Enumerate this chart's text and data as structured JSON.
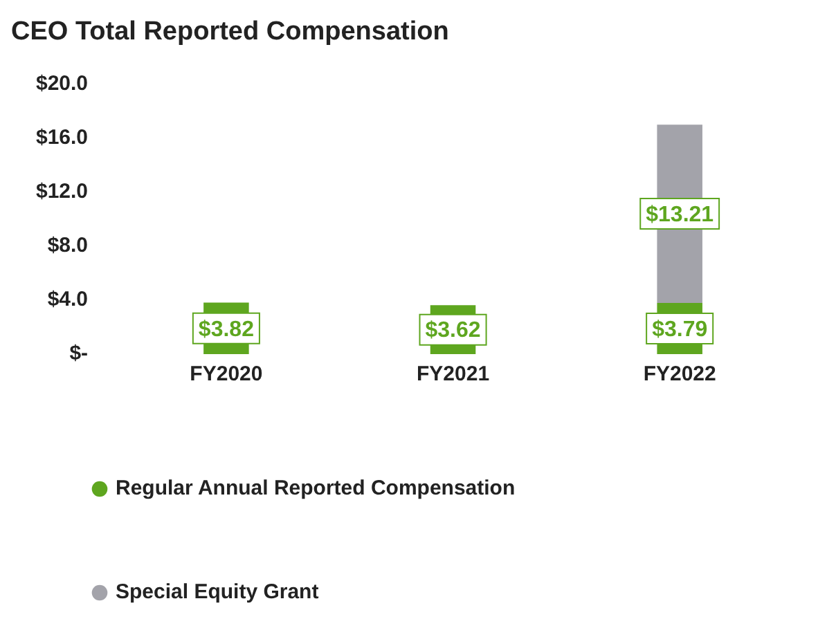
{
  "chart_data": {
    "type": "bar",
    "title": "CEO Total Reported Compensation",
    "categories": [
      "FY2020",
      "FY2021",
      "FY2022"
    ],
    "stacked": true,
    "series": [
      {
        "name": "Regular Annual Reported Compensation",
        "color": "#5ea61f",
        "values": [
          3.82,
          3.62,
          3.79
        ],
        "value_labels": [
          "$3.82",
          "$3.62",
          "$3.79"
        ]
      },
      {
        "name": "Special Equity Grant",
        "color": "#a3a3aa",
        "values": [
          null,
          null,
          13.21
        ],
        "value_labels": [
          null,
          null,
          "$13.21"
        ]
      }
    ],
    "ylim": [
      0,
      20
    ],
    "yticks": [
      {
        "value": 0,
        "label": "$-"
      },
      {
        "value": 4,
        "label": "$4.0"
      },
      {
        "value": 8,
        "label": "$8.0"
      },
      {
        "value": 12,
        "label": "$12.0"
      },
      {
        "value": 16,
        "label": "$16.0"
      },
      {
        "value": 20,
        "label": "$20.0"
      }
    ],
    "grid": false,
    "legend": "bottom"
  }
}
